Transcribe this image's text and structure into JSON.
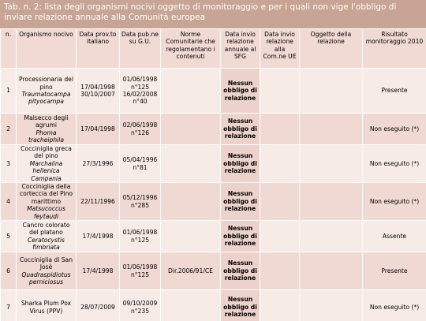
{
  "title": "Tab. n. 2: lista degli organismi nocivi oggetto di monitoraggio e per i quali non vige l'obbligo di inviare relazione annuale alla Comunità europea",
  "headers": [
    "n.",
    "Organismo nocivo",
    "Data prov.to italiano",
    "Data pub.ne su G.U.",
    "Norme Comunitarie che regolamentano i contenuti",
    "Data invio relazione annuale al SFG",
    "Data invio relazione alla Com.ne UE",
    "Oggetto della relazione",
    "Risultato monitoraggio 2010"
  ],
  "rows": [
    {
      "n": "1",
      "organismo": "Processionaria del pino",
      "nome_scientifico": "Traumatocampa pityocampa",
      "data_prov": [
        "17/04/1998",
        "30/10/2007"
      ],
      "data_pub": [
        "01/06/1998 n°125",
        "16/02/2008 n°40"
      ],
      "invio_sfg": "Nessun obbligo di relazione",
      "risultato": "Presente"
    },
    {
      "n": "2",
      "organismo": "Malsecco degli agrumi",
      "nome_scientifico": "Phoma tracheiphila",
      "data_prov": [
        "17/04/1998"
      ],
      "data_pub": [
        "02/06/1998 n°126"
      ],
      "invio_sfg": "Nessun obbligo di relazione",
      "risultato": "Non eseguito (*)"
    },
    {
      "n": "3",
      "organismo": "Cocciniglia greca del pino",
      "nome_scientifico": "Marchalina hellenica",
      "nota": "Campania",
      "data_prov": [
        "27/3/1996"
      ],
      "data_pub": [
        "05/04/1996 n°81"
      ],
      "invio_sfg": "Nessun obbligo di relazione",
      "risultato": "Non eseguito (*)"
    },
    {
      "n": "4",
      "organismo": "Cocciniglia della corteccia del Pino marittimo",
      "nome_scientifico": "Matsucoccus feytaudi",
      "data_prov": [
        "22/11/1996"
      ],
      "data_pub": [
        "05/12/1996 n°285"
      ],
      "invio_sfg": "Nessun obbligo di relazione",
      "risultato": "Non eseguito (*)"
    },
    {
      "n": "5",
      "organismo": "Cancro colorato del platano",
      "nome_scientifico": "Ceratocystis fimbriata",
      "data_prov": [
        "17/4/1998"
      ],
      "data_pub": [
        "01/06/1998 n°125"
      ],
      "invio_sfg": "Nessun obbligo di relazione",
      "risultato": "Assente"
    },
    {
      "n": "6",
      "organismo": "Cocciniglia di San Josè",
      "nome_scientifico": "Quadraspidiotus perniciosus",
      "data_prov": [
        "17/4/1998"
      ],
      "data_pub": [
        "01/06/1998 n°125"
      ],
      "norme": "Dir.2006/91/CE",
      "invio_sfg": "Nessun obbligo di relazione",
      "risultato": "Presente"
    },
    {
      "n": "7",
      "organismo": "Sharka Plum Pox Virus (PPV)",
      "data_prov": [
        "28/07/2009"
      ],
      "data_pub": [
        "09/10/2009 n°235"
      ],
      "invio_sfg": "Nessun obbligo di relazione",
      "risultato": "Non eseguito (*)"
    }
  ]
}
